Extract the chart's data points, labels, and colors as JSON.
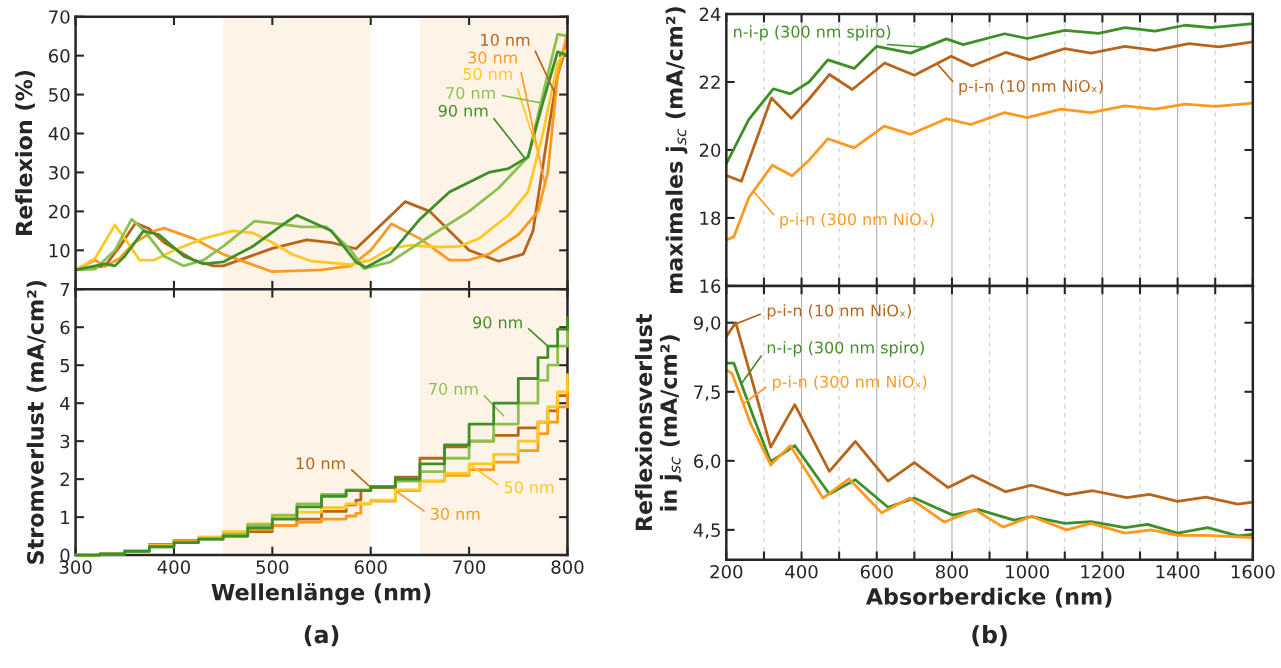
{
  "chart_data": [
    {
      "type": "line",
      "legend": "top right",
      "ylabel": "Reflexion (%)",
      "xlim": [
        300,
        800
      ],
      "ylim": [
        0,
        70
      ],
      "xticks": [
        300,
        400,
        500,
        600,
        700,
        800
      ],
      "yticks": [
        10,
        20,
        30,
        40,
        50,
        60,
        70
      ],
      "tick_labels": "y",
      "bands": [
        {
          "axis": "x",
          "from": 450,
          "to": 600,
          "color": "#fdf3e6"
        },
        {
          "axis": "x",
          "from": 650,
          "to": 800,
          "color": "#fdf3e6"
        }
      ],
      "series": [
        {
          "name": "10 nm",
          "color": "#b8651b",
          "x": [
            300,
            330,
            345,
            361,
            375,
            390,
            420,
            440,
            450,
            500,
            535,
            560,
            585,
            600,
            635,
            660,
            700,
            730,
            755,
            765,
            780,
            790,
            800
          ],
          "values": [
            5,
            6,
            11,
            17,
            15.5,
            12,
            7.5,
            6,
            6,
            10.5,
            12.7,
            12,
            10.4,
            14,
            22.5,
            20,
            10,
            7.2,
            9,
            15,
            40,
            55,
            63.5
          ]
        },
        {
          "name": "30 nm",
          "color": "#ff9a1f",
          "x": [
            300,
            320,
            330,
            345,
            360,
            380,
            390,
            420,
            450,
            500,
            550,
            580,
            600,
            621,
            650,
            680,
            700,
            720,
            750,
            770,
            780,
            790,
            800
          ],
          "values": [
            5,
            7.5,
            5.8,
            8,
            12,
            15,
            15.7,
            13,
            9,
            4.5,
            5,
            6,
            10,
            16.8,
            13,
            7.5,
            7.5,
            9,
            14,
            20,
            30,
            55,
            66
          ]
        },
        {
          "name": "50 nm",
          "color": "#ffc824",
          "x": [
            300,
            320,
            340,
            350,
            365,
            380,
            400,
            430,
            460,
            480,
            500,
            520,
            540,
            580,
            600,
            620,
            640,
            670,
            690,
            710,
            740,
            760,
            775,
            790,
            800
          ],
          "values": [
            5,
            8,
            16.5,
            13,
            7.5,
            7.5,
            10,
            13,
            15,
            14.5,
            12,
            9,
            7.2,
            6.3,
            7.5,
            10.5,
            11.3,
            10.8,
            11,
            13,
            19,
            25,
            40,
            58,
            62
          ]
        },
        {
          "name": "70 nm",
          "color": "#8cc152",
          "x": [
            300,
            320,
            340,
            357,
            370,
            390,
            410,
            430,
            450,
            482,
            500,
            530,
            555,
            580,
            593,
            620,
            650,
            700,
            730,
            760,
            775,
            790,
            800
          ],
          "values": [
            5,
            5.2,
            10,
            18,
            15,
            8.5,
            6,
            7.5,
            11,
            17.5,
            17,
            16,
            16,
            10,
            5.3,
            7,
            12,
            20,
            26,
            34,
            50,
            65.5,
            65
          ]
        },
        {
          "name": "90 nm",
          "color": "#3f8f28",
          "x": [
            300,
            330,
            340,
            350,
            369,
            385,
            410,
            430,
            450,
            480,
            510,
            525,
            560,
            585,
            595,
            620,
            650,
            680,
            720,
            740,
            760,
            775,
            790,
            800
          ],
          "values": [
            5,
            6.5,
            6,
            8.5,
            15,
            14,
            8.5,
            6.5,
            7,
            11,
            16.5,
            19,
            15,
            7,
            5.6,
            9,
            18,
            25,
            30,
            31,
            34,
            48,
            61,
            60
          ]
        }
      ]
    },
    {
      "type": "step",
      "legend": "right",
      "xlabel": "Wellenlänge (nm)",
      "ylabel": "Stromverlust (mA/cm²)",
      "xlim": [
        300,
        800
      ],
      "ylim": [
        0,
        7
      ],
      "xticks": [
        300,
        400,
        500,
        600,
        700,
        800
      ],
      "yticks": [
        0,
        1,
        2,
        3,
        4,
        5,
        6,
        7
      ],
      "bands": [
        {
          "axis": "x",
          "from": 450,
          "to": 600,
          "color": "#fdf3e6"
        },
        {
          "axis": "x",
          "from": 650,
          "to": 800,
          "color": "#fdf3e6"
        }
      ],
      "annotations": [
        "(a)"
      ],
      "series": [
        {
          "name": "10 nm",
          "color": "#b8651b",
          "x": [
            350,
            375,
            400,
            425,
            450,
            475,
            500,
            525,
            550,
            575,
            585,
            590,
            600,
            625,
            650,
            675,
            700,
            725,
            750,
            770,
            780,
            790,
            800
          ],
          "values": [
            0.12,
            0.28,
            0.38,
            0.43,
            0.5,
            0.62,
            0.78,
            0.95,
            1.15,
            1.32,
            1.45,
            1.7,
            1.78,
            2.05,
            2.55,
            2.85,
            3.0,
            3.15,
            3.35,
            3.5,
            3.8,
            4.2,
            4.6
          ]
        },
        {
          "name": "30 nm",
          "color": "#ff9a1f",
          "x": [
            300,
            325,
            350,
            375,
            400,
            425,
            450,
            475,
            500,
            525,
            550,
            575,
            585,
            590,
            600,
            625,
            650,
            675,
            700,
            725,
            750,
            770,
            780,
            790,
            800
          ],
          "values": [
            0,
            0.03,
            0.12,
            0.27,
            0.35,
            0.45,
            0.55,
            0.68,
            0.78,
            0.87,
            0.95,
            1.03,
            1.1,
            1.35,
            1.42,
            1.7,
            1.95,
            2.1,
            2.25,
            2.45,
            2.75,
            3.2,
            3.5,
            3.9,
            4.4
          ]
        },
        {
          "name": "50 nm",
          "color": "#ffc824",
          "x": [
            300,
            325,
            350,
            375,
            400,
            425,
            450,
            475,
            500,
            525,
            550,
            575,
            600,
            625,
            650,
            675,
            700,
            725,
            750,
            770,
            780,
            790,
            800
          ],
          "values": [
            0,
            0.03,
            0.12,
            0.25,
            0.35,
            0.48,
            0.62,
            0.82,
            1.0,
            1.13,
            1.25,
            1.35,
            1.45,
            1.72,
            1.95,
            2.15,
            2.4,
            2.65,
            3.0,
            3.5,
            3.9,
            4.3,
            4.75
          ]
        },
        {
          "name": "70 nm",
          "color": "#8cc152",
          "x": [
            300,
            325,
            350,
            375,
            400,
            425,
            450,
            475,
            500,
            525,
            550,
            575,
            600,
            625,
            650,
            675,
            700,
            725,
            750,
            770,
            780,
            790,
            800
          ],
          "values": [
            0,
            0.03,
            0.1,
            0.22,
            0.33,
            0.43,
            0.55,
            0.8,
            1.05,
            1.35,
            1.6,
            1.72,
            1.8,
            1.95,
            2.2,
            2.55,
            3.0,
            3.45,
            4.0,
            4.6,
            5.0,
            5.5,
            5.9
          ]
        },
        {
          "name": "90 nm",
          "color": "#3f8f28",
          "x": [
            300,
            325,
            350,
            375,
            400,
            425,
            450,
            475,
            500,
            525,
            550,
            575,
            600,
            625,
            650,
            675,
            700,
            725,
            750,
            770,
            780,
            790,
            800
          ],
          "values": [
            0,
            0.03,
            0.1,
            0.22,
            0.33,
            0.42,
            0.5,
            0.72,
            0.95,
            1.27,
            1.55,
            1.7,
            1.8,
            2.0,
            2.4,
            2.9,
            3.45,
            4.0,
            4.65,
            5.2,
            5.5,
            5.95,
            6.25
          ]
        }
      ]
    },
    {
      "type": "line",
      "legend": "top",
      "ylabel": "maximales j$_{sc}$ (mA/cm²)",
      "xlim": [
        200,
        1600
      ],
      "ylim": [
        16,
        24
      ],
      "yticks": [
        16,
        18,
        20,
        22,
        24
      ],
      "tick_labels": "y",
      "grid": "x",
      "xticks": [
        200,
        {
          "value": 300,
          "label": null
        },
        400,
        {
          "value": 500,
          "label": null
        },
        600,
        {
          "value": 700,
          "label": null
        },
        800,
        {
          "value": 900,
          "label": null
        },
        1000,
        {
          "value": 1100,
          "label": null
        },
        1200,
        {
          "value": 1300,
          "label": null
        },
        1400,
        {
          "value": 1500,
          "label": null
        },
        1600
      ],
      "series": [
        {
          "name": "n-i-p (300 nm spiro)",
          "color": "#3f8f28",
          "x": [
            200,
            260,
            325,
            370,
            420,
            470,
            540,
            600,
            690,
            785,
            830,
            940,
            1000,
            1100,
            1190,
            1260,
            1340,
            1420,
            1490,
            1600
          ],
          "values": [
            19.6,
            20.9,
            21.8,
            21.65,
            22.0,
            22.65,
            22.4,
            23.05,
            22.85,
            23.27,
            23.1,
            23.42,
            23.28,
            23.52,
            23.43,
            23.6,
            23.5,
            23.67,
            23.6,
            23.72
          ]
        },
        {
          "name": "p-i-n (10 nm NiOₓ)",
          "color": "#b8651b",
          "x": [
            200,
            240,
            280,
            320,
            373,
            420,
            474,
            535,
            621,
            700,
            798,
            853,
            943,
            1006,
            1100,
            1170,
            1260,
            1340,
            1430,
            1510,
            1600
          ],
          "values": [
            19.25,
            19.08,
            20.3,
            21.53,
            20.93,
            21.5,
            22.22,
            21.78,
            22.56,
            22.2,
            22.76,
            22.47,
            22.87,
            22.66,
            22.98,
            22.85,
            23.05,
            22.93,
            23.13,
            23.03,
            23.18
          ]
        },
        {
          "name": "p-i-n (300 nm NiOₓ)",
          "color": "#ff9a1f",
          "x": [
            200,
            220,
            260,
            322,
            375,
            420,
            470,
            540,
            620,
            690,
            785,
            850,
            940,
            1000,
            1090,
            1170,
            1260,
            1340,
            1420,
            1500,
            1600
          ],
          "values": [
            17.35,
            17.45,
            18.6,
            19.55,
            19.24,
            19.7,
            20.33,
            20.06,
            20.7,
            20.46,
            20.92,
            20.75,
            21.1,
            20.95,
            21.2,
            21.1,
            21.3,
            21.2,
            21.35,
            21.28,
            21.38
          ]
        }
      ]
    },
    {
      "type": "line",
      "legend": "top left",
      "xlabel": "Absorberdicke (nm)",
      "ylabel": "Reflexionsverlust\nin j$_{sc}$ (mA/cm²)",
      "xlim": [
        200,
        1600
      ],
      "ylim": [
        3.85,
        9.8
      ],
      "grid": "x",
      "yticks": [
        {
          "value": 4.5,
          "label": "4,5"
        },
        {
          "value": 6.0,
          "label": "6,0"
        },
        {
          "value": 7.5,
          "label": "7,5"
        },
        {
          "value": 9.0,
          "label": "9,0"
        }
      ],
      "xticks": [
        200,
        {
          "value": 300,
          "label": null
        },
        400,
        {
          "value": 500,
          "label": null
        },
        600,
        {
          "value": 700,
          "label": null
        },
        800,
        {
          "value": 900,
          "label": null
        },
        1000,
        {
          "value": 1100,
          "label": null
        },
        1200,
        {
          "value": 1300,
          "label": null
        },
        1400,
        {
          "value": 1500,
          "label": null
        },
        1600
      ],
      "annotations": [
        "(b)"
      ],
      "series": [
        {
          "name": "p-i-n (10 nm NiOₓ)",
          "color": "#b8651b",
          "x": [
            200,
            225,
            270,
            318,
            382,
            474,
            543,
            630,
            700,
            790,
            854,
            943,
            1012,
            1105,
            1175,
            1265,
            1325,
            1400,
            1475,
            1560,
            1600
          ],
          "values": [
            8.7,
            9.0,
            7.7,
            6.3,
            7.22,
            5.77,
            6.42,
            5.56,
            5.96,
            5.42,
            5.68,
            5.33,
            5.47,
            5.26,
            5.35,
            5.2,
            5.27,
            5.12,
            5.21,
            5.06,
            5.1
          ]
        },
        {
          "name": "n-i-p (300 nm spiro)",
          "color": "#3f8f28",
          "x": [
            200,
            220,
            270,
            318,
            382,
            474,
            543,
            630,
            700,
            802,
            871,
            965,
            1012,
            1100,
            1170,
            1260,
            1320,
            1400,
            1480,
            1560,
            1600
          ],
          "values": [
            8.12,
            8.12,
            7.0,
            5.98,
            6.33,
            5.28,
            5.59,
            4.99,
            5.19,
            4.82,
            4.94,
            4.71,
            4.79,
            4.64,
            4.68,
            4.55,
            4.62,
            4.43,
            4.55,
            4.37,
            4.4
          ]
        },
        {
          "name": "p-i-n (300 nm NiOₓ)",
          "color": "#ff9a1f",
          "x": [
            200,
            215,
            265,
            318,
            370,
            457,
            526,
            613,
            688,
            780,
            861,
            936,
            1012,
            1105,
            1170,
            1260,
            1330,
            1400,
            1480,
            1600
          ],
          "values": [
            7.97,
            7.9,
            6.8,
            5.91,
            6.33,
            5.19,
            5.61,
            4.87,
            5.19,
            4.67,
            4.94,
            4.56,
            4.79,
            4.5,
            4.64,
            4.43,
            4.5,
            4.38,
            4.38,
            4.33
          ]
        }
      ]
    }
  ]
}
